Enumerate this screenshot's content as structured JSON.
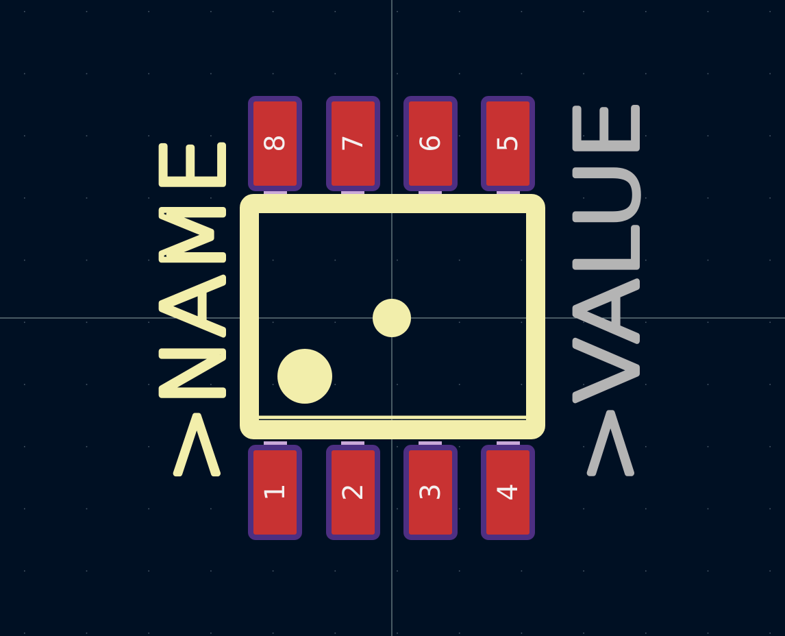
{
  "footprint": {
    "name_text": ">NAME",
    "value_text": ">VALUE",
    "pads_top": [
      {
        "number": "8"
      },
      {
        "number": "7"
      },
      {
        "number": "6"
      },
      {
        "number": "5"
      }
    ],
    "pads_bottom": [
      {
        "number": "1"
      },
      {
        "number": "2"
      },
      {
        "number": "3"
      },
      {
        "number": "4"
      }
    ]
  },
  "colors": {
    "background": "#001023",
    "pad_fill": "#c83232",
    "pad_outline": "#4d2f82",
    "silkscreen": "#f2eeab",
    "value_text": "#b4b4b4",
    "grid_dot": "#4a5a6a",
    "crosshair": "#8fa3a6"
  }
}
